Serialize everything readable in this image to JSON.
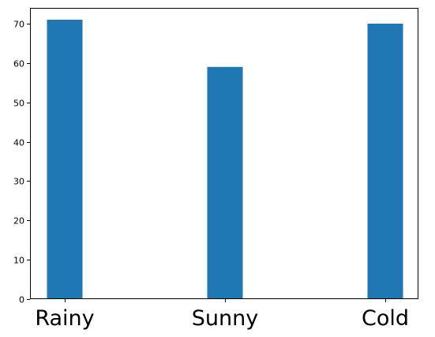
{
  "chart_data": {
    "type": "bar",
    "categories": [
      "Rainy",
      "Sunny",
      "Cold"
    ],
    "values": [
      71,
      59,
      70
    ],
    "title": "",
    "xlabel": "",
    "ylabel": "",
    "ylim": [
      0,
      74
    ],
    "yticks": [
      0,
      10,
      20,
      30,
      40,
      50,
      60,
      70
    ],
    "grid": false,
    "bar_color": "#1f77b4"
  }
}
